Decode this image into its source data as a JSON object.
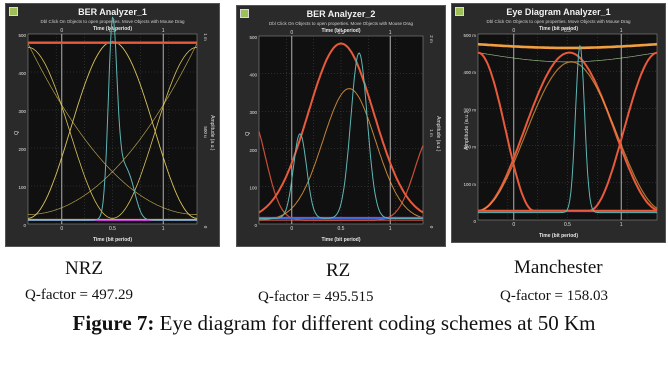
{
  "panels": [
    {
      "title": "BER Analyzer_1",
      "hint": "Dbl Click On Objects to open properties.  Move Objects with Mouse Drag",
      "x_axis_label": "Time (bit period)",
      "y_left_label": "Q",
      "y_right_label": "Amplitude (a.u.)",
      "top_ticks": [
        "0",
        "0.5",
        "1"
      ],
      "bottom_ticks": [
        "0",
        "0.5",
        "1"
      ],
      "left_ticks": [
        "500",
        "400",
        "300",
        "200",
        "100",
        "0"
      ],
      "right_ticks": [
        "1 m",
        "500 u",
        "0"
      ],
      "scheme": "NRZ",
      "qfactor": "Q-factor = 497.29"
    },
    {
      "title": "BER Analyzer_2",
      "hint": "Dbl Click On Objects to open properties.  Move Objects with Mouse Drag",
      "x_axis_label": "Time (bit period)",
      "y_left_label": "Q",
      "y_right_label": "Amplitude (a.u.)",
      "top_ticks": [
        "0",
        "0.5",
        "1"
      ],
      "bottom_ticks": [
        "0",
        "0.5",
        "1"
      ],
      "left_ticks": [
        "500",
        "400",
        "300",
        "200",
        "100",
        "0"
      ],
      "right_ticks": [
        "2 m",
        "1 m",
        "0"
      ],
      "scheme": "RZ",
      "qfactor": "Q-factor = 495.515"
    },
    {
      "title": "Eye Diagram Analyzer_1",
      "hint": "Dbl Click On Objects to open properties.  Move Objects with Mouse Drag",
      "x_axis_label": "Time (bit period)",
      "y_left_label": "Amplitude (a.u.)",
      "y_right_label": "",
      "top_ticks": [
        "0",
        "0.5",
        "1"
      ],
      "bottom_ticks": [
        "0",
        "0.5",
        "1"
      ],
      "left_ticks": [
        "500 m",
        "400 m",
        "300 m",
        "200 m",
        "100 m",
        "0"
      ],
      "right_ticks": [],
      "scheme": "Manchester",
      "qfactor": "Q-factor = 158.03"
    }
  ],
  "caption": {
    "prefix": "Figure 7:",
    "text": " Eye diagram for different coding schemes at 50 Km"
  },
  "colors": {
    "background": "#2a2a2a",
    "grid": "#5a5a5a",
    "q_curve": "#5fb7b4",
    "eye_yellow": "#d8c35a",
    "eye_red": "#e85a3c",
    "eye_orange": "#f0a040",
    "baseline_magenta": "#c23bd6",
    "baseline_blue": "#3b6bd6"
  }
}
